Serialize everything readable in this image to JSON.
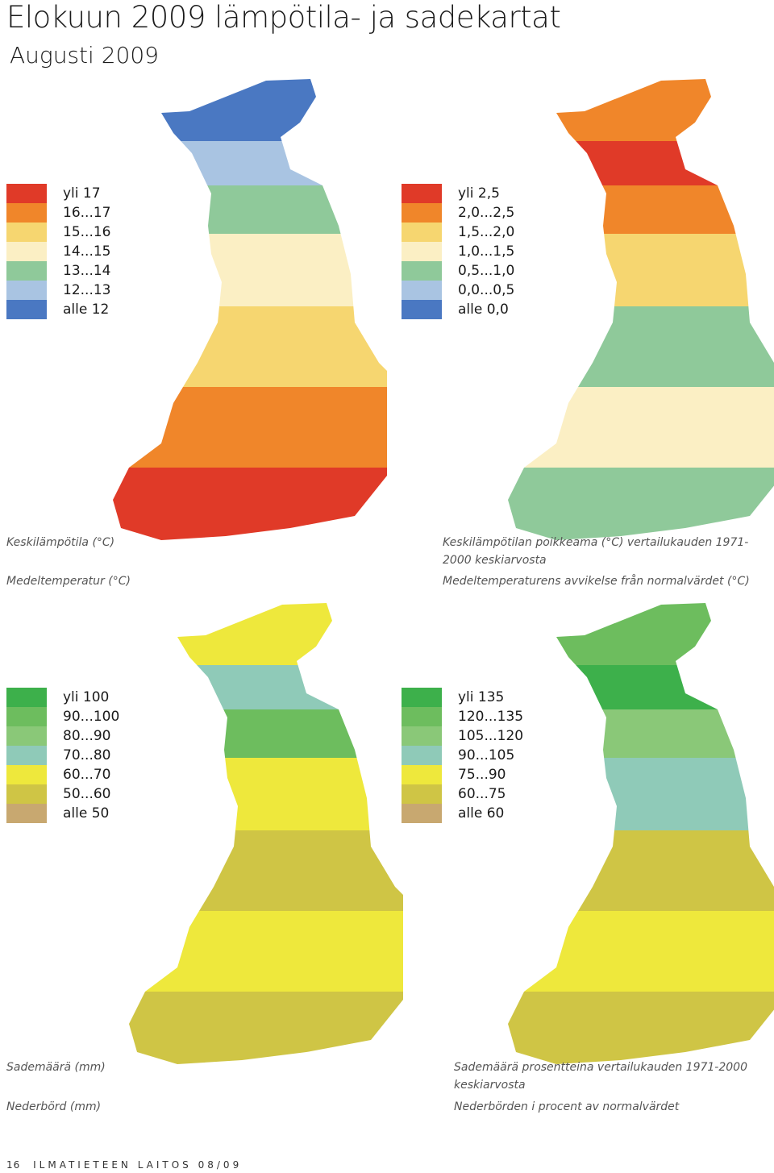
{
  "header": {
    "title": "Elokuun  2009 lämpötila- ja sadekartat",
    "subtitle": "Augusti 2009"
  },
  "panels": [
    {
      "id": "temp",
      "legend": [
        {
          "label": "yli 17",
          "color": "#e03a28"
        },
        {
          "label": "16...17",
          "color": "#f0862a"
        },
        {
          "label": "15...16",
          "color": "#f6d670"
        },
        {
          "label": "14...15",
          "color": "#fbefc4"
        },
        {
          "label": "13...14",
          "color": "#8fc99a"
        },
        {
          "label": "12...13",
          "color": "#a9c4e2"
        },
        {
          "label": "alle 12",
          "color": "#4a78c2"
        }
      ],
      "map_colors": [
        "#4a78c2",
        "#a9c4e2",
        "#8fc99a",
        "#fbefc4",
        "#f6d670",
        "#f0862a",
        "#e03a28"
      ],
      "caption_fi": "Keskilämpötila (°C)",
      "caption_sv": "Medeltemperatur (°C)"
    },
    {
      "id": "temp-anomaly",
      "legend": [
        {
          "label": "yli 2,5",
          "color": "#e03a28"
        },
        {
          "label": "2,0...2,5",
          "color": "#f0862a"
        },
        {
          "label": "1,5...2,0",
          "color": "#f6d670"
        },
        {
          "label": "1,0...1,5",
          "color": "#fbefc4"
        },
        {
          "label": "0,5...1,0",
          "color": "#8fc99a"
        },
        {
          "label": "0,0...0,5",
          "color": "#a9c4e2"
        },
        {
          "label": "alle 0,0",
          "color": "#4a78c2"
        }
      ],
      "map_colors": [
        "#f0862a",
        "#e03a28",
        "#f0862a",
        "#f6d670",
        "#8fc99a",
        "#fbefc4",
        "#8fc99a"
      ],
      "caption_fi": "Keskilämpötilan poikkeama (°C) vertailukauden 1971-2000 keskiarvosta",
      "caption_sv": "Medeltemperaturens avvikelse från normalvärdet (°C)"
    },
    {
      "id": "precip",
      "legend": [
        {
          "label": "yli 100",
          "color": "#3db04b"
        },
        {
          "label": "90...100",
          "color": "#6dbd5e"
        },
        {
          "label": "80...90",
          "color": "#8ac878"
        },
        {
          "label": "70...80",
          "color": "#8fcab8"
        },
        {
          "label": "60...70",
          "color": "#eee83c"
        },
        {
          "label": "50...60",
          "color": "#cfc545"
        },
        {
          "label": "alle 50",
          "color": "#c8a870"
        }
      ],
      "map_colors": [
        "#eee83c",
        "#8fcab8",
        "#6dbd5e",
        "#eee83c",
        "#cfc545",
        "#eee83c",
        "#cfc545"
      ],
      "caption_fi": "Sademäärä (mm)",
      "caption_sv": "Nederbörd (mm)"
    },
    {
      "id": "precip-percent",
      "legend": [
        {
          "label": "yli 135",
          "color": "#3db04b"
        },
        {
          "label": "120...135",
          "color": "#6dbd5e"
        },
        {
          "label": "105...120",
          "color": "#8ac878"
        },
        {
          "label": "90...105",
          "color": "#8fcab8"
        },
        {
          "label": "75...90",
          "color": "#eee83c"
        },
        {
          "label": "60...75",
          "color": "#cfc545"
        },
        {
          "label": "alle 60",
          "color": "#c8a870"
        }
      ],
      "map_colors": [
        "#6dbd5e",
        "#3db04b",
        "#8ac878",
        "#8fcab8",
        "#cfc545",
        "#eee83c",
        "#cfc545"
      ],
      "caption_fi": "Sademäärä prosentteina vertailukauden 1971-2000 keskiarvosta",
      "caption_sv": "Nederbörden i procent av normalvärdet"
    }
  ],
  "footer": {
    "page": "16",
    "publication": "ILMATIETEEN LAITOS 08/09"
  }
}
